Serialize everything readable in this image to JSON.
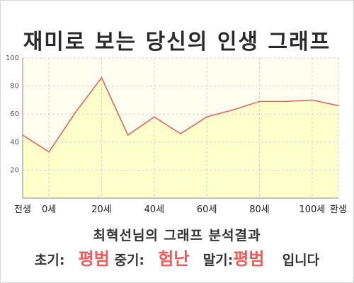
{
  "title": "재미로 보는 당신의 인생 그래프",
  "result": {
    "heading": "최혁선님의 그래프 분석결과",
    "early_label": "초기:",
    "early_value": "평범",
    "middle_label": "중기:",
    "middle_value": "험난",
    "late_label": "말기:",
    "late_value": "평범",
    "suffix": "입니다"
  },
  "colors": {
    "line": "#e06666",
    "fill": "#ffffcc",
    "plot_bg": "#fffff0",
    "grid": "#d0d0d0",
    "accent_text": "#f05a5a"
  },
  "chart_data": {
    "type": "area",
    "x": [
      -10,
      0,
      10,
      20,
      30,
      40,
      50,
      60,
      70,
      80,
      90,
      100,
      110
    ],
    "values": [
      45,
      33,
      61,
      86,
      45,
      58,
      46,
      58,
      63,
      69,
      69,
      70,
      66
    ],
    "x_tick_labels": [
      "전생",
      "0세",
      "20세",
      "40세",
      "60세",
      "80세",
      "100세",
      "환생"
    ],
    "x_tick_values": [
      -10,
      0,
      20,
      40,
      60,
      80,
      100,
      110
    ],
    "y_ticks": [
      20,
      40,
      60,
      80,
      100
    ],
    "ylim": [
      0,
      100
    ],
    "xlim": [
      -10,
      110
    ],
    "grid": true
  }
}
